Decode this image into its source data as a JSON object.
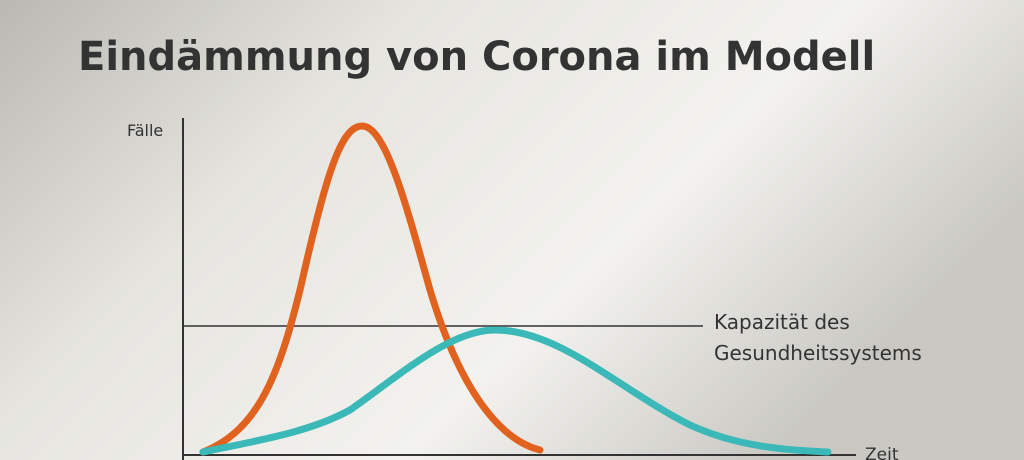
{
  "title": "Eindämmung von Corona im Modell",
  "y_axis_label": "Fälle",
  "x_axis_label": "Zeit",
  "capacity_label": [
    "Kapazität des",
    "Gesundheitssystems"
  ]
}
